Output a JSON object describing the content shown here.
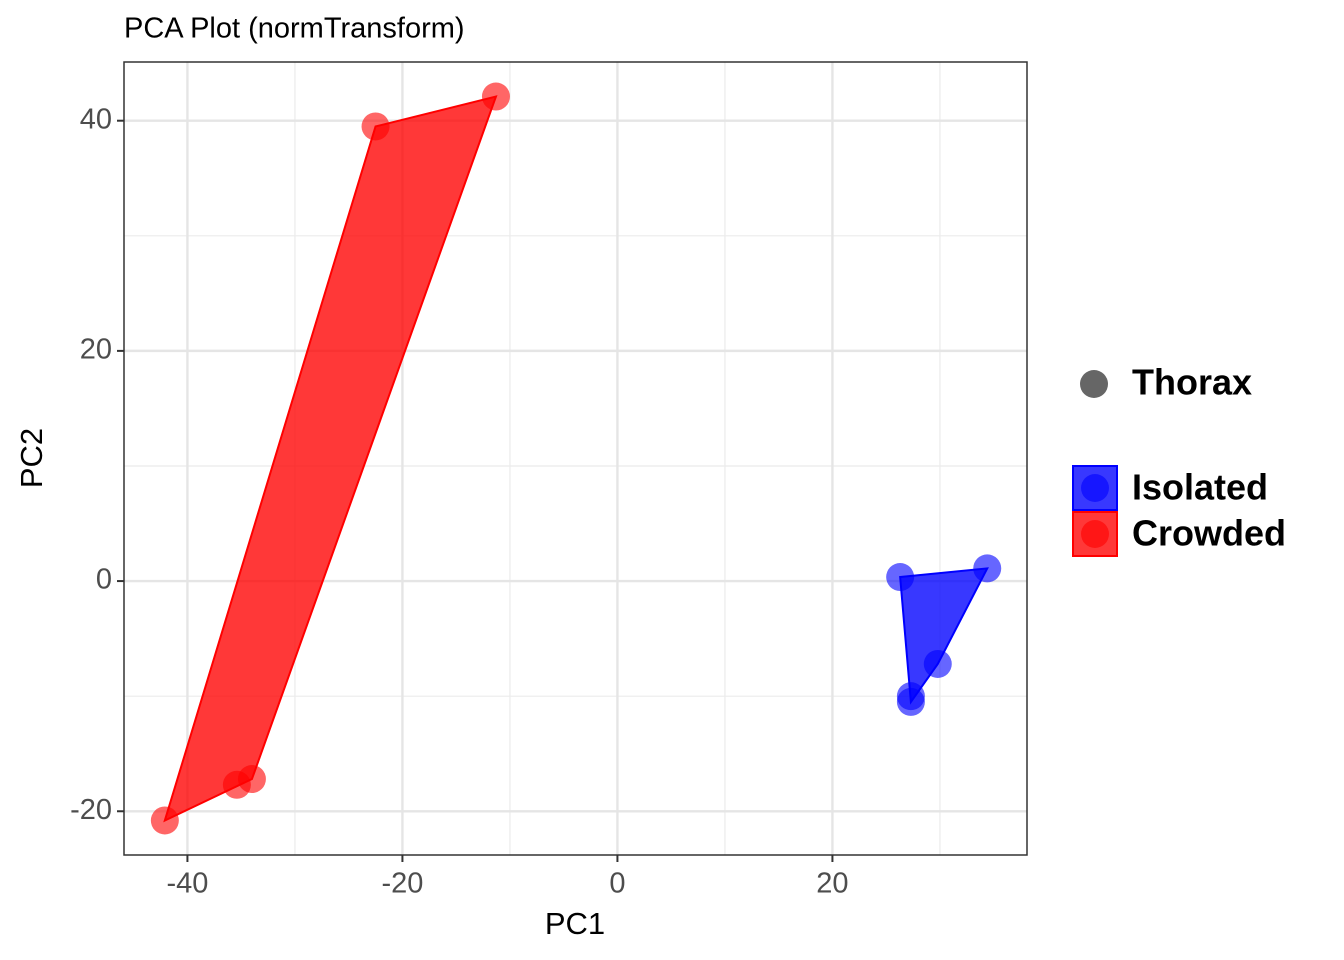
{
  "chart_data": {
    "type": "scatter",
    "title": "PCA Plot (normTransform)",
    "x_label": "PC1",
    "y_label": "PC2",
    "xlim": [
      -45.9,
      38.1
    ],
    "ylim": [
      -23.8,
      45.1
    ],
    "xticks": [
      -40,
      -20,
      0,
      20
    ],
    "yticks": [
      -20,
      0,
      20,
      40
    ],
    "x_minor_ticks": [
      -30,
      -10,
      10,
      30
    ],
    "y_minor_ticks": [
      -10,
      10,
      30
    ],
    "grid": true,
    "hull": true,
    "legend": "right",
    "shape_legend": "Thorax",
    "series": [
      {
        "name": "Isolated",
        "color": "#0000ff",
        "x": [
          26.3,
          34.4,
          29.8,
          27.3,
          27.3
        ],
        "y": [
          0.35,
          1.1,
          -7.2,
          -10.0,
          -10.5
        ]
      },
      {
        "name": "Crowded",
        "color": "#ff0000",
        "x": [
          -42.1,
          -35.4,
          -34.0,
          -22.5,
          -11.3
        ],
        "y": [
          -20.8,
          -17.7,
          -17.2,
          39.5,
          42.1
        ]
      }
    ]
  }
}
